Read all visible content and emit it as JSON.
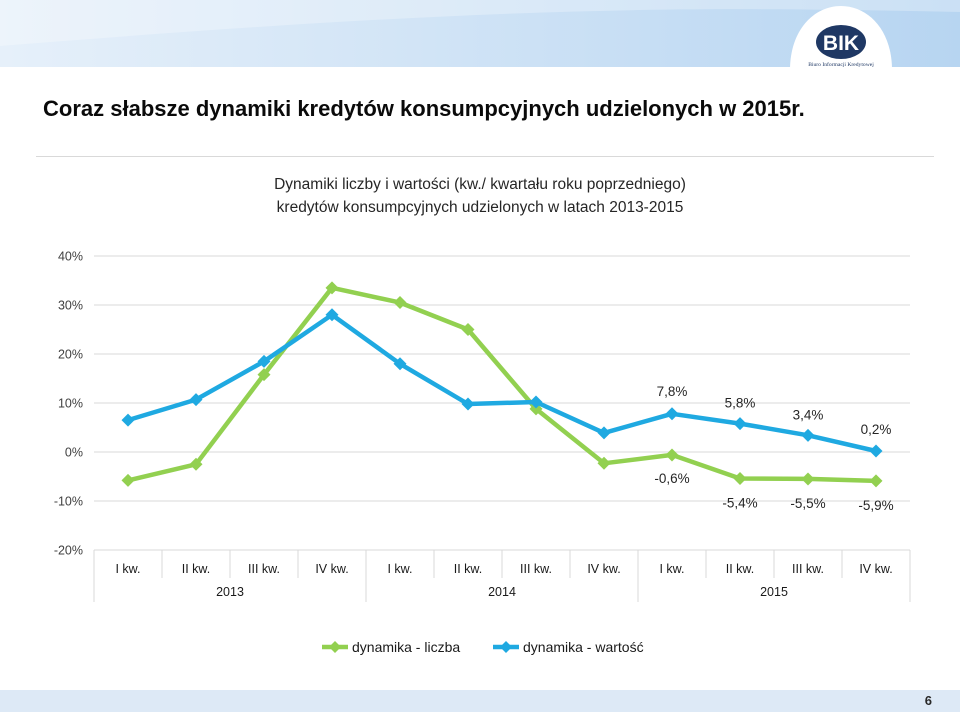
{
  "slide": {
    "title": "Coraz słabsze dynamiki kredytów konsumpcyjnych udzielonych w 2015r.",
    "page_number": "6"
  },
  "logo": {
    "mark": "BIK",
    "caption": "Biuro Informacji Kredytowej"
  },
  "colors": {
    "series_liczba": "#92d050",
    "series_wartosc": "#1fa9e1",
    "header_band_left": "#e3eef9",
    "header_band_right": "#b9d7f2",
    "logo_navy": "#1f3864",
    "footer_band": "#dde9f6"
  },
  "chart_data": {
    "type": "line",
    "title": "Dynamiki liczby i wartości (kw./ kwartału roku poprzedniego)",
    "subtitle": "kredytów konsumpcyjnych udzielonych w latach 2013-2015",
    "categories": [
      "I kw.",
      "II kw.",
      "III kw.",
      "IV kw.",
      "I kw.",
      "II kw.",
      "III kw.",
      "IV kw.",
      "I kw.",
      "II kw.",
      "III kw.",
      "IV kw."
    ],
    "groups": [
      {
        "label": "2013",
        "span": 4
      },
      {
        "label": "2014",
        "span": 4
      },
      {
        "label": "2015",
        "span": 4
      }
    ],
    "ylim": [
      -20,
      40
    ],
    "yticks": [
      -20,
      -10,
      0,
      10,
      20,
      30,
      40
    ],
    "ytick_labels": [
      "-20%",
      "-10%",
      "0%",
      "10%",
      "20%",
      "30%",
      "40%"
    ],
    "grid": true,
    "legend_position": "bottom",
    "series": [
      {
        "name": "dynamika - liczba",
        "values": [
          -5.8,
          -2.5,
          15.8,
          33.5,
          30.5,
          25.0,
          8.8,
          -2.3,
          -0.6,
          -5.4,
          -5.5,
          -5.9
        ],
        "data_labels": [
          "",
          "",
          "",
          "",
          "",
          "",
          "",
          "",
          "-0,6%",
          "-5,4%",
          "-5,5%",
          "-5,9%"
        ]
      },
      {
        "name": "dynamika - wartość",
        "values": [
          6.5,
          10.7,
          18.5,
          28.0,
          18.0,
          9.8,
          10.2,
          3.9,
          7.8,
          5.8,
          3.4,
          0.2
        ],
        "data_labels": [
          "",
          "",
          "",
          "",
          "",
          "",
          "",
          "",
          "7,8%",
          "5,8%",
          "3,4%",
          "0,2%"
        ]
      }
    ]
  }
}
